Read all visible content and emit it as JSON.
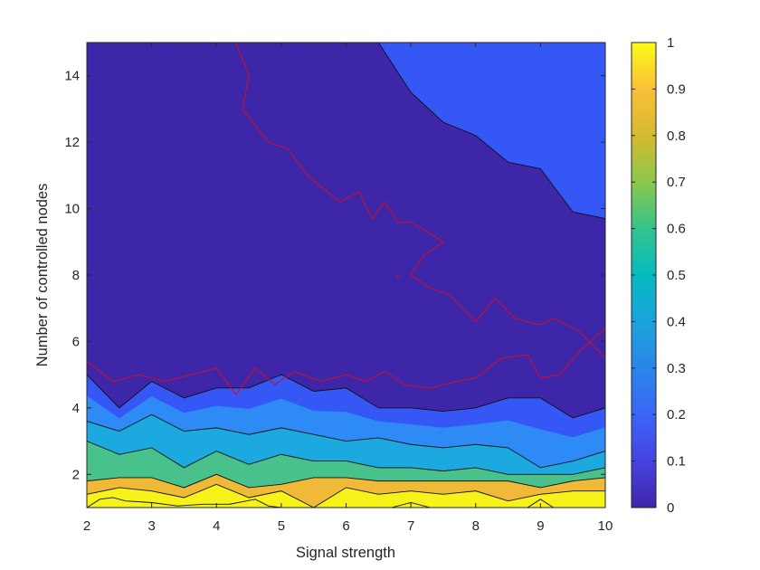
{
  "chart_data": {
    "type": "heatmap",
    "subtype": "filled-contour",
    "title": "",
    "xlabel": "Signal strength",
    "ylabel": "Number of controlled nodes",
    "xlim": [
      2,
      10
    ],
    "ylim": [
      1,
      15
    ],
    "x_ticks": [
      "2",
      "3",
      "4",
      "5",
      "6",
      "7",
      "8",
      "9",
      "10"
    ],
    "y_ticks": [
      "2",
      "4",
      "6",
      "8",
      "10",
      "12",
      "14"
    ],
    "grid": false,
    "colormap": "parula",
    "colorbar": {
      "range": [
        0,
        1
      ],
      "ticks": [
        "0",
        "0.1",
        "0.2",
        "0.3",
        "0.4",
        "0.5",
        "0.6",
        "0.7",
        "0.8",
        "0.9",
        "1"
      ]
    },
    "contour_levels": [
      {
        "level_range": [
          0.0,
          0.1
        ],
        "color": "#3e26a8"
      },
      {
        "level_range": [
          0.1,
          0.2
        ],
        "color": "#3457f5"
      },
      {
        "level_range": [
          0.2,
          0.3
        ],
        "color": "#2e8af5"
      },
      {
        "level_range": [
          0.3,
          0.4
        ],
        "color": "#1ca9e0"
      },
      {
        "level_range": [
          0.4,
          0.6
        ],
        "color": "#48c28a"
      },
      {
        "level_range": [
          0.6,
          0.8
        ],
        "color": "#a6bf36"
      },
      {
        "level_range": [
          0.8,
          0.9
        ],
        "color": "#f0b938"
      },
      {
        "level_range": [
          0.9,
          1.0
        ],
        "color": "#f7f219"
      }
    ],
    "boundaries": [
      {
        "name": "level-0.1-upper",
        "x": [
          2,
          2.5,
          3,
          3.5,
          4,
          4.5,
          5,
          5.5,
          6,
          6.5,
          7,
          7.5,
          8,
          8.5,
          9,
          9.5,
          10
        ],
        "y": [
          15,
          15,
          15,
          15,
          15,
          15,
          15,
          15,
          15,
          15,
          13.5,
          12.6,
          12.2,
          11.4,
          11.2,
          9.9,
          9.7
        ]
      },
      {
        "name": "level-0.1-lower",
        "x": [
          2,
          2.5,
          3,
          3.5,
          4,
          4.5,
          5,
          5.5,
          6,
          6.5,
          7,
          7.5,
          8,
          8.5,
          9,
          9.5,
          10
        ],
        "y": [
          5.0,
          4.0,
          4.8,
          4.3,
          4.6,
          4.6,
          5.0,
          4.5,
          4.6,
          4.0,
          4.0,
          3.9,
          4.0,
          4.3,
          4.3,
          3.7,
          4.0
        ]
      },
      {
        "name": "level-0.2",
        "x": [
          2,
          2.5,
          3,
          3.5,
          4,
          4.5,
          5,
          5.5,
          6,
          6.5,
          7,
          7.5,
          8,
          8.5,
          9,
          9.5,
          10
        ],
        "y": [
          3.6,
          3.3,
          3.8,
          3.3,
          3.4,
          3.2,
          3.4,
          3.2,
          3.0,
          3.1,
          2.9,
          2.8,
          2.9,
          2.8,
          2.2,
          2.4,
          2.7
        ]
      },
      {
        "name": "level-0.3",
        "x": [
          2,
          2.5,
          3,
          3.5,
          4,
          4.5,
          5,
          5.5,
          6,
          6.5,
          7,
          7.5,
          8,
          8.5,
          9,
          9.5,
          10
        ],
        "y": [
          3.0,
          2.6,
          2.8,
          2.2,
          2.7,
          2.3,
          2.6,
          2.4,
          2.4,
          2.2,
          2.2,
          2.1,
          2.2,
          2.0,
          2.0,
          2.0,
          2.2
        ]
      },
      {
        "name": "level-0.6",
        "x": [
          2,
          2.5,
          3,
          3.5,
          4,
          4.5,
          5,
          5.5,
          6,
          6.5,
          7,
          7.5,
          8,
          8.5,
          9,
          9.5,
          10
        ],
        "y": [
          1.8,
          1.9,
          1.9,
          1.6,
          2.0,
          1.6,
          1.7,
          1.9,
          1.9,
          1.8,
          1.8,
          1.8,
          1.8,
          1.8,
          1.6,
          1.8,
          1.9
        ]
      },
      {
        "name": "level-0.8",
        "x": [
          2,
          2.5,
          3,
          3.5,
          4,
          4.5,
          5,
          5.5,
          6,
          6.5,
          7,
          7.5,
          8,
          8.5,
          9,
          9.5,
          10
        ],
        "y": [
          1.4,
          1.6,
          1.5,
          1.3,
          1.7,
          1.3,
          1.5,
          1.0,
          1.6,
          1.4,
          1.5,
          1.4,
          1.5,
          1.2,
          1.4,
          1.5,
          1.5
        ]
      },
      {
        "name": "level-0.9",
        "x": [
          2,
          2.2,
          2.4,
          2.6,
          3.0,
          3.4,
          3.8,
          4.2,
          4.6,
          4.8,
          5.0,
          6.7,
          7.0,
          7.3,
          8.8,
          9.0,
          9.2,
          9.6
        ],
        "y": [
          1.0,
          1.25,
          1.3,
          1.2,
          1.15,
          1.05,
          1.1,
          1.1,
          1.25,
          1.05,
          1.0,
          1.0,
          1.15,
          1.0,
          1.0,
          1.25,
          1.0,
          1.0
        ]
      }
    ],
    "red_contour": {
      "color": "#c8102e",
      "x": [
        4.3,
        4.5,
        4.4,
        4.8,
        5.1,
        5.4,
        5.9,
        6.2,
        6.4,
        6.6,
        6.8,
        7.0,
        7.5,
        7.2,
        7.0,
        7.3,
        7.6,
        8.0,
        8.3,
        8.6,
        9.0,
        9.2,
        9.6,
        10.0
      ],
      "y": [
        15.0,
        14.0,
        13.0,
        12.0,
        11.8,
        11.0,
        10.2,
        10.5,
        9.7,
        10.2,
        9.6,
        9.6,
        9.0,
        8.6,
        8.0,
        7.6,
        7.4,
        6.6,
        7.3,
        6.7,
        6.5,
        6.7,
        6.3,
        5.5
      ],
      "lower_x": [
        2,
        2.4,
        2.8,
        3.2,
        3.6,
        4.0,
        4.3,
        4.6,
        4.9,
        5.2,
        5.6,
        6.0,
        6.3,
        6.6,
        6.9,
        7.3,
        7.7,
        8.0,
        8.4,
        8.8,
        9.0,
        9.3,
        9.6,
        10.0
      ],
      "lower_y": [
        5.4,
        4.8,
        5.0,
        4.8,
        5.0,
        5.2,
        4.4,
        5.2,
        4.7,
        5.1,
        4.8,
        5.0,
        4.8,
        5.1,
        4.7,
        4.6,
        4.8,
        4.9,
        5.5,
        5.6,
        4.9,
        5.0,
        5.7,
        6.4
      ],
      "marker": [
        6.8,
        8.0
      ]
    }
  }
}
